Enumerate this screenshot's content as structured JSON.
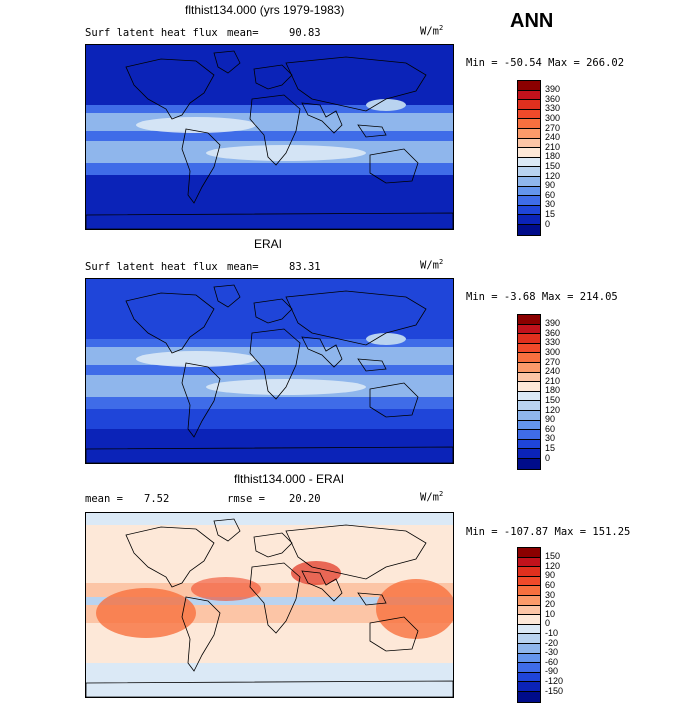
{
  "season": "ANN",
  "units": "W/m",
  "units_exp": "2",
  "chart_data": [
    {
      "type": "heatmap",
      "title": "flthist134.000 (yrs 1979-1983)",
      "field": "Surf latent heat flux",
      "mean_label": "mean=",
      "mean": "90.83",
      "stats": "Min = -50.54 Max = 266.02",
      "colorbar": {
        "levels": [
          "390",
          "360",
          "330",
          "300",
          "270",
          "240",
          "210",
          "180",
          "150",
          "120",
          "90",
          "60",
          "30",
          "15",
          "0"
        ],
        "colors": [
          "#8b0000",
          "#c1121c",
          "#e0301e",
          "#f04a2a",
          "#f7703f",
          "#fb9a6a",
          "#fcc5a6",
          "#fde8d8",
          "#dbe9f6",
          "#b9d3f0",
          "#8fb6ec",
          "#6495ed",
          "#3f6ce8",
          "#1f45d9",
          "#0b23b8",
          "#000c8a"
        ]
      }
    },
    {
      "type": "heatmap",
      "title": "ERAI",
      "field": "Surf latent heat flux",
      "mean_label": "mean=",
      "mean": "83.31",
      "stats": "Min = -3.68 Max = 214.05",
      "colorbar": {
        "levels": [
          "390",
          "360",
          "330",
          "300",
          "270",
          "240",
          "210",
          "180",
          "150",
          "120",
          "90",
          "60",
          "30",
          "15",
          "0"
        ],
        "colors": [
          "#8b0000",
          "#c1121c",
          "#e0301e",
          "#f04a2a",
          "#f7703f",
          "#fb9a6a",
          "#fcc5a6",
          "#fde8d8",
          "#dbe9f6",
          "#b9d3f0",
          "#8fb6ec",
          "#6495ed",
          "#3f6ce8",
          "#1f45d9",
          "#0b23b8",
          "#000c8a"
        ]
      }
    },
    {
      "type": "heatmap",
      "title": "flthist134.000 - ERAI",
      "mean_label": "mean =",
      "mean": "7.52",
      "rmse_label": "rmse =",
      "rmse": "20.20",
      "stats": "Min = -107.87 Max = 151.25",
      "colorbar": {
        "levels": [
          "150",
          "120",
          "90",
          "60",
          "30",
          "20",
          "10",
          "0",
          "-10",
          "-20",
          "-30",
          "-60",
          "-90",
          "-120",
          "-150"
        ],
        "colors": [
          "#8b0000",
          "#c1121c",
          "#e0301e",
          "#f04a2a",
          "#f7703f",
          "#fb9a6a",
          "#fcc5a6",
          "#fde8d8",
          "#dbe9f6",
          "#b9d3f0",
          "#8fb6ec",
          "#6495ed",
          "#3f6ce8",
          "#1f45d9",
          "#0b23b8",
          "#000c8a"
        ]
      }
    }
  ]
}
